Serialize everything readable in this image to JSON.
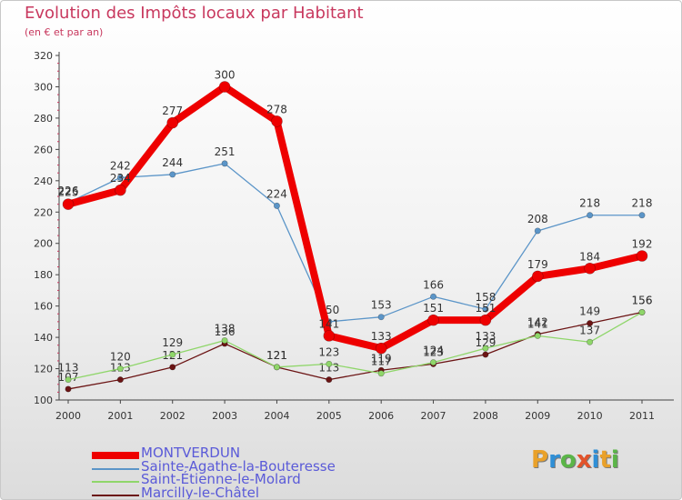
{
  "title": "Evolution des Impôts locaux par Habitant",
  "subtitle": "(en € et par an)",
  "logo": {
    "text": "Proxiti",
    "colors": [
      "#e9a12a",
      "#2f8fd6",
      "#5bb548",
      "#e2532b",
      "#2f8fd6",
      "#e9a12a",
      "#5bb548"
    ]
  },
  "chart_data": {
    "type": "line",
    "title": "Evolution des Impôts locaux par Habitant",
    "subtitle": "(en € et par an)",
    "xlabel": "",
    "ylabel": "",
    "ylim": [
      100,
      320
    ],
    "yticks": [
      100,
      120,
      140,
      160,
      180,
      200,
      220,
      240,
      260,
      280,
      300,
      320
    ],
    "grid": false,
    "legend_position": "bottom-left",
    "x": [
      "2000",
      "2001",
      "2002",
      "2003",
      "2004",
      "2005",
      "2006",
      "2007",
      "2008",
      "2009",
      "2010",
      "2011"
    ],
    "series": [
      {
        "name": "Marcilly-le-Châtel",
        "color": "#6b1414",
        "values": [
          107,
          113,
          121,
          136,
          121,
          113,
          119,
          123,
          129,
          142,
          149,
          156
        ],
        "labels": [
          "107",
          "113",
          "121",
          "136",
          "121",
          "113",
          "119",
          "123",
          "129",
          "142",
          "149",
          "156"
        ]
      },
      {
        "name": "Saint-Étienne-le-Molard",
        "color": "#8fd66a",
        "values": [
          113,
          120,
          129,
          138,
          121,
          123,
          117,
          124,
          133,
          141,
          137,
          156
        ],
        "labels": [
          "113",
          "120",
          "129",
          "138",
          "121",
          "123",
          "117",
          "124",
          "133",
          "141",
          "137",
          "156"
        ]
      },
      {
        "name": "Sainte-Agathe-la-Bouteresse",
        "color": "#5b95c8",
        "values": [
          226,
          242,
          244,
          251,
          224,
          150,
          153,
          166,
          158,
          208,
          218,
          218
        ],
        "labels": [
          "226",
          "242",
          "244",
          "251",
          "224",
          "150",
          "153",
          "166",
          "158",
          "208",
          "218",
          "218"
        ]
      },
      {
        "name": "MONTVERDUN",
        "color": "#ee0000",
        "values": [
          225,
          234,
          277,
          300,
          278,
          141,
          133,
          151,
          151,
          179,
          184,
          192
        ],
        "labels": [
          "225",
          "234",
          "277",
          "300",
          "278",
          "141",
          "133",
          "151",
          "151",
          "179",
          "184",
          "192"
        ]
      }
    ],
    "legend": [
      {
        "name": "MONTVERDUN",
        "color": "#ee0000"
      },
      {
        "name": "Sainte-Agathe-la-Bouteresse",
        "color": "#5b95c8"
      },
      {
        "name": "Saint-Étienne-le-Molard",
        "color": "#8fd66a"
      },
      {
        "name": "Marcilly-le-Châtel",
        "color": "#6b1414"
      }
    ]
  }
}
